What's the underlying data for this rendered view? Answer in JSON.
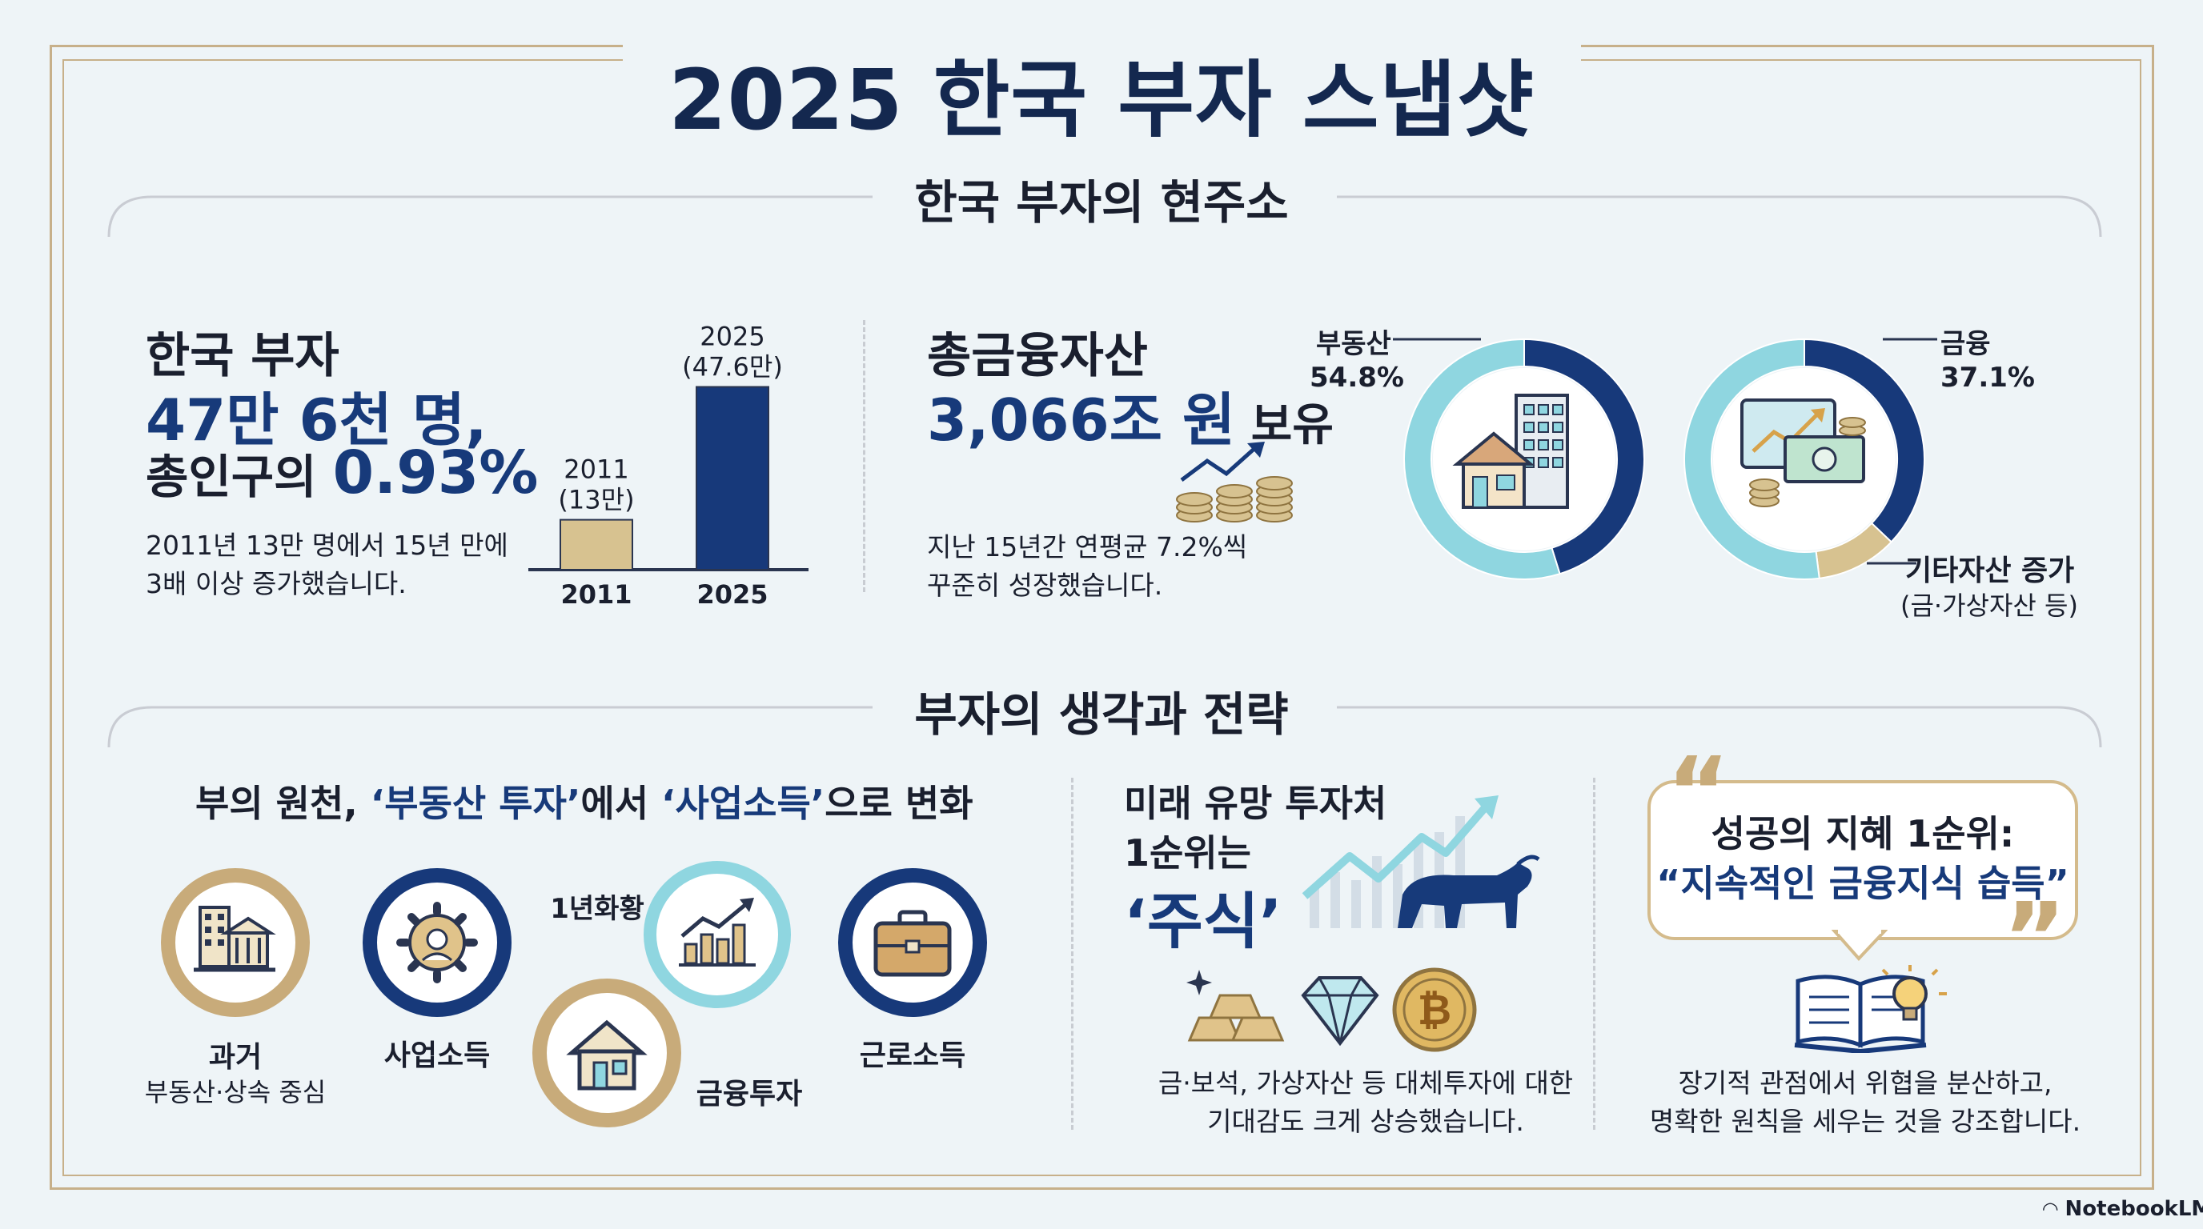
{
  "title": "2025 한국 부자 스냅샷",
  "sections": {
    "status": "한국 부자의 현주소",
    "strategy": "부자의 생각과 전략"
  },
  "population": {
    "label": "한국 부자",
    "count": "47만 6천 명,",
    "share_prefix": "총인구의 ",
    "share_value": "0.93%",
    "desc_line1": "2011년 13만 명에서 15년 만에",
    "desc_line2": "3배 이상 증가했습니다."
  },
  "assets": {
    "label": "총금융자산",
    "amount": "3,066조 원",
    "amount_suffix": " 보유",
    "desc_line1": "지난 15년간 연평균 7.2%씩",
    "desc_line2": "꾸준히 성장했습니다."
  },
  "chart_data": [
    {
      "type": "bar",
      "categories": [
        "2011",
        "2025"
      ],
      "values": [
        13,
        47.6
      ],
      "unit": "만",
      "bar_labels": [
        {
          "year": "2011",
          "value": "(13만)"
        },
        {
          "year": "2025",
          "value": "(47.6만)"
        }
      ],
      "colors": [
        "#d7c290",
        "#17397a"
      ]
    },
    {
      "type": "pie",
      "style": "donut",
      "highlight_label": "부동산",
      "highlight_value": "54.8%",
      "slices": [
        {
          "label": "부동산",
          "value": 54.8,
          "color": "#8fd6e0"
        },
        {
          "label": "",
          "value": 45.2,
          "color": "#17397a"
        }
      ]
    },
    {
      "type": "pie",
      "style": "donut",
      "highlight_label": "금융",
      "highlight_value": "37.1%",
      "other_label": "기타자산 증가",
      "other_note": "(금·가상자산 등)",
      "slices": [
        {
          "label": "금융",
          "value": 37.1,
          "color": "#17397a"
        },
        {
          "label": "기타자산",
          "value": 10.9,
          "color": "#d7c290"
        },
        {
          "label": "",
          "value": 52.0,
          "color": "#8fd6e0"
        }
      ]
    }
  ],
  "wealth_source": {
    "heading_pre": "부의 원천, ",
    "quote1": "‘부동산 투자’",
    "heading_mid": "에서 ",
    "quote2": "‘사업소득’",
    "heading_post": "으로 변화",
    "items": [
      {
        "label": "과거",
        "sub": "부동산·상속 중심"
      },
      {
        "label": "사업소득"
      },
      {
        "label": "1년화황"
      },
      {
        "label": "금융투자"
      },
      {
        "label": "근로소득"
      }
    ]
  },
  "future": {
    "line1": "미래 유망 투자처",
    "line2": "1순위는",
    "highlight": "‘주식’",
    "desc_line1": "금·보석, 가상자산 등 대체투자에 대한",
    "desc_line2": "기대감도 크게 상승했습니다."
  },
  "wisdom": {
    "line1": "성공의 지혜 1순위:",
    "line2": "“지속적인 금융지식 습득”",
    "desc_line1": "장기적 관점에서 위협을 분산하고,",
    "desc_line2": "명확한 원칙을 세우는 것을 강조합니다."
  },
  "branding": "NotebookLM"
}
